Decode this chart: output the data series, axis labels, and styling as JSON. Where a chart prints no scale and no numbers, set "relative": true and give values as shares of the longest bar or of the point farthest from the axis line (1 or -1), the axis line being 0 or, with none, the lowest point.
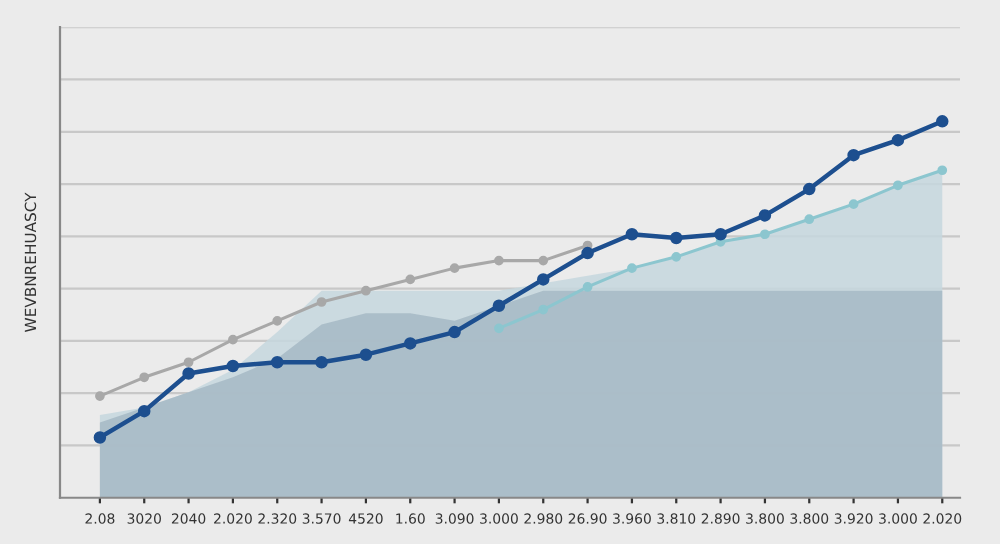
{
  "chart_data": {
    "type": "line",
    "ylabel": "WEVBNREHUASCY",
    "grid": "y",
    "line_style": "solid",
    "relative": true,
    "categories": [
      "2.08",
      "3020",
      "2040",
      "2.020",
      "2.320",
      "3.570",
      "4520",
      "1.60",
      "3.090",
      "3.000",
      "2.980",
      "26.90",
      "3.960",
      "3.810",
      "2.890",
      "3.800",
      "3.800",
      "3.920",
      "3.000",
      "2.020"
    ],
    "series": [
      {
        "type": "area",
        "color": "#c6d7de",
        "values": [
          0.22,
          0.24,
          0.28,
          0.34,
          0.44,
          0.55,
          0.55,
          0.55,
          0.55,
          0.55,
          0.57,
          0.59,
          0.61,
          0.64,
          0.68,
          0.7,
          0.74,
          0.78,
          0.83,
          0.87
        ]
      },
      {
        "type": "area",
        "color": "#a6b8c4",
        "values": [
          0.2,
          0.24,
          0.28,
          0.32,
          0.37,
          0.46,
          0.49,
          0.49,
          0.47,
          0.51,
          0.55,
          0.55,
          0.55,
          0.55,
          0.55,
          0.55,
          0.55,
          0.55,
          0.55,
          0.55
        ]
      },
      {
        "color": "#a8a8a8",
        "marker": "circle",
        "values": [
          0.27,
          0.32,
          0.36,
          0.42,
          0.47,
          0.52,
          0.55,
          0.58,
          0.61,
          0.63,
          0.63,
          0.67,
          null,
          null,
          null,
          null,
          null,
          null,
          null,
          null
        ]
      },
      {
        "color": "#8cc6cf",
        "marker": "circle",
        "values": [
          null,
          null,
          null,
          null,
          null,
          null,
          null,
          null,
          null,
          0.45,
          0.5,
          0.56,
          0.61,
          0.64,
          0.68,
          0.7,
          0.74,
          0.78,
          0.83,
          0.87
        ]
      },
      {
        "color": "#1d4f8f",
        "marker": "circle",
        "values": [
          0.16,
          0.23,
          0.33,
          0.35,
          0.36,
          0.36,
          0.38,
          0.41,
          0.44,
          0.51,
          0.58,
          0.65,
          0.7,
          0.69,
          0.7,
          0.75,
          0.82,
          0.91,
          0.95,
          1.0
        ]
      }
    ]
  }
}
